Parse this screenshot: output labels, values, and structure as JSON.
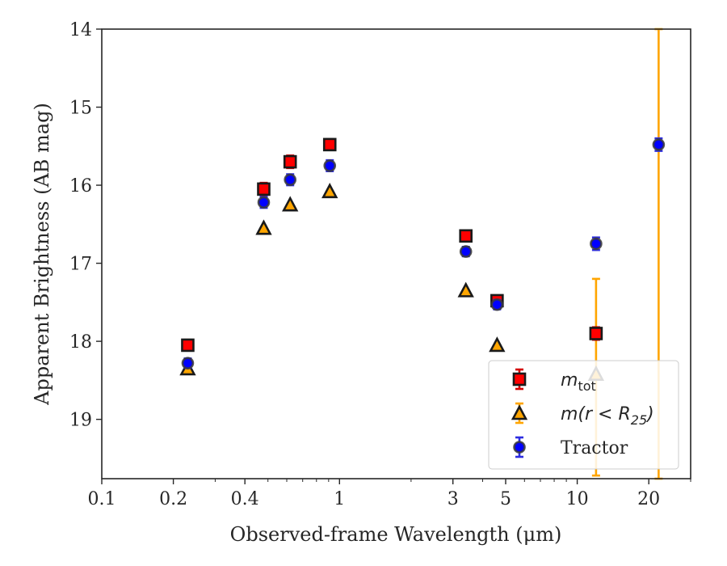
{
  "chart_data": {
    "type": "scatter",
    "xlabel": "Observed-frame Wavelength (μm)",
    "ylabel": "Apparent Brightness (AB mag)",
    "xscale": "log",
    "xlim": [
      0.1,
      30
    ],
    "ylim": [
      19.76,
      14
    ],
    "y_inverted": true,
    "xticks": [
      {
        "value": 0.1,
        "label": "0.1"
      },
      {
        "value": 0.2,
        "label": "0.2"
      },
      {
        "value": 0.4,
        "label": "0.4"
      },
      {
        "value": 1,
        "label": "1"
      },
      {
        "value": 3,
        "label": "3"
      },
      {
        "value": 5,
        "label": "5"
      },
      {
        "value": 10,
        "label": "10"
      },
      {
        "value": 20,
        "label": "20"
      }
    ],
    "yticks": [
      {
        "value": 14,
        "label": "14"
      },
      {
        "value": 15,
        "label": "15"
      },
      {
        "value": 16,
        "label": "16"
      },
      {
        "value": 17,
        "label": "17"
      },
      {
        "value": 18,
        "label": "18"
      },
      {
        "value": 19,
        "label": "19"
      }
    ],
    "grid": false,
    "legend_position": "bottom-right",
    "series": [
      {
        "name": "m_tot",
        "legend_label": {
          "main": "m",
          "sub": "tot",
          "rest": ""
        },
        "marker": "square",
        "color": "#ff0000",
        "edge_color": "#1a1a1a",
        "error_color": "#d40000",
        "points": [
          {
            "x": 0.23,
            "y": 18.05,
            "err": 0.07
          },
          {
            "x": 0.48,
            "y": 16.05,
            "err": 0.08
          },
          {
            "x": 0.62,
            "y": 15.7,
            "err": 0.08
          },
          {
            "x": 0.91,
            "y": 15.48,
            "err": 0.07
          },
          {
            "x": 3.4,
            "y": 16.65,
            "err": 0.06
          },
          {
            "x": 4.6,
            "y": 17.48,
            "err": 0.06
          },
          {
            "x": 12.0,
            "y": 17.9,
            "err": 0.08
          }
        ]
      },
      {
        "name": "m(r < R_25)",
        "legend_label": {
          "main": "m(r < R",
          "sub": "25",
          "rest": ")"
        },
        "marker": "triangle",
        "color": "#ffa500",
        "edge_color": "#1a1a1a",
        "error_color": "#ffa500",
        "points": [
          {
            "x": 0.23,
            "y": 18.35,
            "err": 0
          },
          {
            "x": 0.48,
            "y": 16.55,
            "err": 0
          },
          {
            "x": 0.62,
            "y": 16.25,
            "err": 0
          },
          {
            "x": 0.91,
            "y": 16.08,
            "err": 0
          },
          {
            "x": 3.4,
            "y": 17.35,
            "err": 0
          },
          {
            "x": 4.6,
            "y": 18.05,
            "err": 0
          },
          {
            "x": 12.0,
            "y": 18.42,
            "err_low": 1.22,
            "err_high": 1.3
          },
          {
            "x": 22.0,
            "y": 17.0,
            "err_low": 4.0,
            "err_high": 4.0,
            "marker_hidden": true
          }
        ]
      },
      {
        "name": "Tractor",
        "legend_label": {
          "main": "Tractor",
          "sub": "",
          "rest": ""
        },
        "marker": "circle",
        "color": "#0000ff",
        "edge_color": "#1a1a1a",
        "error_color": "#2d2de0",
        "points": [
          {
            "x": 0.23,
            "y": 18.28,
            "err": 0.06
          },
          {
            "x": 0.48,
            "y": 16.22,
            "err": 0.07
          },
          {
            "x": 0.62,
            "y": 15.93,
            "err": 0.07
          },
          {
            "x": 0.91,
            "y": 15.75,
            "err": 0.07
          },
          {
            "x": 3.4,
            "y": 16.85,
            "err": 0.06
          },
          {
            "x": 4.6,
            "y": 17.53,
            "err": 0.06
          },
          {
            "x": 12.0,
            "y": 16.75,
            "err": 0.08
          },
          {
            "x": 22.0,
            "y": 15.48,
            "err": 0.08
          }
        ]
      }
    ]
  }
}
